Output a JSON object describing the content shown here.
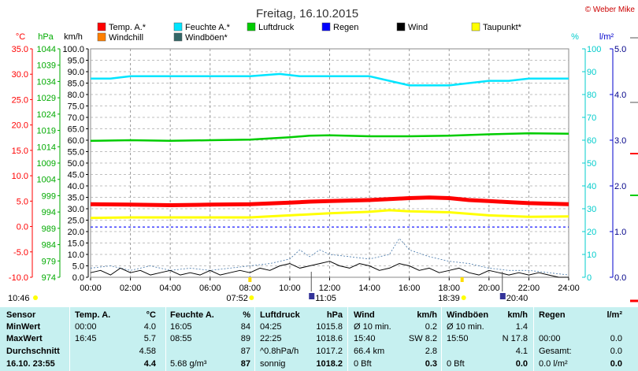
{
  "header": {
    "title": "Freitag, 16.10.2015",
    "credit": "© Weber Mike"
  },
  "colors": {
    "temp": "#ff0000",
    "feuchte": "#00e5ff",
    "luftdruck": "#00cc00",
    "regen": "#0000ff",
    "wind": "#000000",
    "taupunkt": "#ffff00",
    "windchill": "#ff7f00",
    "windboeen": "#336666",
    "table_bg": "#c6f0f0"
  },
  "legend": [
    {
      "label": "Temp. A.*",
      "color": "#ff0000"
    },
    {
      "label": "Feuchte A.*",
      "color": "#00e5ff"
    },
    {
      "label": "Luftdruck",
      "color": "#00cc00"
    },
    {
      "label": "Regen",
      "color": "#0000ff"
    },
    {
      "label": "Wind",
      "color": "#000000"
    },
    {
      "label": "Taupunkt*",
      "color": "#ffff00"
    },
    {
      "label": "Windchill",
      "color": "#ff7f00"
    },
    {
      "label": "Windböen*",
      "color": "#336666"
    }
  ],
  "chart_data": {
    "type": "line",
    "title": "Freitag, 16.10.2015",
    "x_ticks": [
      "00:00",
      "02:00",
      "04:00",
      "06:00",
      "08:00",
      "10:00",
      "12:00",
      "14:00",
      "16:00",
      "18:00",
      "20:00",
      "22:00",
      "24:00"
    ],
    "axes": {
      "temp": {
        "unit": "°C",
        "ticks": [
          "35.0",
          "30.0",
          "25.0",
          "20.0",
          "15.0",
          "10.0",
          "5.0",
          "0.0",
          "-5.0",
          "-10.0"
        ],
        "range": [
          -10,
          35
        ]
      },
      "pressure": {
        "unit": "hPa",
        "ticks": [
          "1044",
          "1039",
          "1034",
          "1029",
          "1024",
          "1019",
          "1014",
          "1009",
          "1004",
          "999",
          "994",
          "989",
          "984",
          "979",
          "974"
        ],
        "range": [
          974,
          1044
        ]
      },
      "wind": {
        "unit": "km/h",
        "ticks": [
          "100.0",
          "95.0",
          "90.0",
          "85.0",
          "80.0",
          "75.0",
          "70.0",
          "65.0",
          "60.0",
          "55.0",
          "50.0",
          "45.0",
          "40.0",
          "35.0",
          "30.0",
          "25.0",
          "20.0",
          "15.0",
          "10.0",
          "5.0",
          "0.0"
        ],
        "range": [
          0,
          100
        ]
      },
      "humidity": {
        "unit": "%",
        "ticks": [
          "100",
          "90",
          "80",
          "70",
          "60",
          "50",
          "40",
          "30",
          "20",
          "10",
          "0"
        ],
        "range": [
          0,
          100
        ]
      },
      "rain": {
        "unit": "l/m²",
        "ticks": [
          "5.0",
          "4.0",
          "3.0",
          "2.0",
          "1.0",
          "0.0"
        ],
        "range": [
          0,
          5
        ]
      }
    },
    "series": [
      {
        "name": "Feuchte A.*",
        "axis": "humidity",
        "x": [
          0,
          1,
          2,
          4,
          6,
          8,
          9.5,
          10.5,
          12,
          14,
          15,
          16,
          17,
          18,
          19,
          20,
          21,
          22,
          24
        ],
        "y": [
          87,
          87,
          88,
          88,
          88,
          88,
          89,
          88,
          88,
          88,
          86,
          84,
          84,
          84,
          85,
          86,
          86,
          87,
          87
        ]
      },
      {
        "name": "Luftdruck",
        "axis": "pressure",
        "x": [
          0,
          2,
          4,
          6,
          8,
          10,
          11,
          12,
          14,
          16,
          18,
          20,
          22,
          24
        ],
        "y": [
          1015.8,
          1016.0,
          1015.8,
          1016.0,
          1016.2,
          1016.9,
          1017.4,
          1017.5,
          1017.2,
          1017.2,
          1017.4,
          1017.8,
          1018.1,
          1018.0
        ]
      },
      {
        "name": "Temp. A.*",
        "axis": "temp",
        "x": [
          0,
          2,
          4,
          6,
          8,
          10,
          11,
          12,
          14,
          15,
          16,
          17,
          18,
          19,
          20,
          21,
          22,
          24
        ],
        "y": [
          4.4,
          4.3,
          4.2,
          4.3,
          4.4,
          4.7,
          4.9,
          5.0,
          5.2,
          5.4,
          5.6,
          5.7,
          5.6,
          5.2,
          5.0,
          4.8,
          4.6,
          4.4
        ]
      },
      {
        "name": "Taupunkt*",
        "axis": "temp",
        "x": [
          0,
          2,
          4,
          6,
          8,
          10,
          12,
          14,
          15,
          16,
          18,
          20,
          22,
          24
        ],
        "y": [
          1.7,
          1.8,
          1.8,
          1.8,
          1.8,
          2.2,
          2.6,
          2.9,
          3.2,
          3.0,
          2.8,
          2.2,
          1.9,
          2.0
        ]
      },
      {
        "name": "Regen",
        "axis": "rain",
        "x": [
          0,
          24
        ],
        "y": [
          1.1,
          1.1
        ]
      },
      {
        "name": "Wind",
        "axis": "wind",
        "x": [
          0,
          0.5,
          1,
          1.5,
          2,
          2.5,
          3,
          3.5,
          4,
          4.5,
          5,
          5.5,
          6,
          6.5,
          7,
          7.5,
          8,
          8.5,
          9,
          9.5,
          10,
          10.5,
          11,
          11.5,
          12,
          12.5,
          13,
          13.5,
          14,
          14.5,
          15,
          15.5,
          16,
          16.5,
          17,
          17.5,
          18,
          18.5,
          19,
          19.5,
          20,
          20.5,
          21,
          21.5,
          22,
          22.5,
          23,
          23.5,
          24
        ],
        "y": [
          2,
          3,
          1,
          4,
          2,
          3,
          1,
          2,
          3,
          1,
          2,
          1,
          3,
          1,
          2,
          3,
          2,
          4,
          3,
          5,
          6,
          4,
          5,
          6,
          7,
          5,
          4,
          6,
          5,
          3,
          4,
          6,
          5,
          3,
          4,
          2,
          3,
          4,
          2,
          1,
          3,
          2,
          1,
          2,
          1,
          2,
          1,
          0,
          0
        ]
      },
      {
        "name": "Windböen*",
        "axis": "wind",
        "x": [
          0,
          1,
          2,
          3,
          4,
          5,
          6,
          7,
          8,
          9,
          10,
          10.5,
          11,
          11.5,
          12,
          13,
          14,
          15,
          15.5,
          16,
          17,
          18,
          19,
          20,
          21,
          22,
          23,
          24
        ],
        "y": [
          4,
          5,
          3,
          5,
          3,
          4,
          3,
          4,
          5,
          6,
          8,
          12,
          9,
          12,
          10,
          9,
          8,
          10,
          17,
          12,
          9,
          7,
          6,
          4,
          3,
          3,
          2,
          1
        ]
      }
    ]
  },
  "events": {
    "sunrise": "07:52",
    "sunset": "18:39",
    "moon_events": [
      "11:05",
      "20:40"
    ],
    "time_left": "10:46"
  },
  "table": {
    "headers": [
      {
        "label": "Sensor"
      },
      {
        "label": "Temp. A.",
        "unit": "°C"
      },
      {
        "label": "Feuchte A.",
        "unit": "%"
      },
      {
        "label": "Luftdruck",
        "unit": "hPa"
      },
      {
        "label": "Wind",
        "unit": "km/h"
      },
      {
        "label": "Windböen",
        "unit": "km/h"
      },
      {
        "label": "Regen",
        "unit": "l/m²"
      }
    ],
    "rows": [
      {
        "label": "MinWert",
        "cells": [
          [
            "00:00",
            "4.0"
          ],
          [
            "16:05",
            "84"
          ],
          [
            "04:25",
            "1015.8"
          ],
          [
            "Ø 10 min.",
            "0.2"
          ],
          [
            "Ø 10 min.",
            "1.4"
          ],
          [
            "",
            ""
          ]
        ]
      },
      {
        "label": "MaxWert",
        "cells": [
          [
            "16:45",
            "5.7"
          ],
          [
            "08:55",
            "89"
          ],
          [
            "22:25",
            "1018.6"
          ],
          [
            "15:40",
            "SW 8.2"
          ],
          [
            "15:50",
            "N 17.8"
          ],
          [
            "00:00",
            "0.0"
          ]
        ]
      },
      {
        "label": "Durchschnitt",
        "cells": [
          [
            "",
            "4.58"
          ],
          [
            "",
            "87"
          ],
          [
            "^0.8hPa/h",
            "1017.2"
          ],
          [
            "66.4 km",
            "2.8"
          ],
          [
            "",
            "4.1"
          ],
          [
            "Gesamt:",
            "0.0"
          ]
        ]
      },
      {
        "label": "16.10. 23:55",
        "cells": [
          [
            "",
            "4.4"
          ],
          [
            "5.68 g/m³",
            "87"
          ],
          [
            "sonnig",
            "1018.2"
          ],
          [
            "0 Bft",
            "0.3"
          ],
          [
            "0 Bft",
            "0.0"
          ],
          [
            "0.0 l/m²",
            "0.0"
          ]
        ]
      }
    ]
  }
}
